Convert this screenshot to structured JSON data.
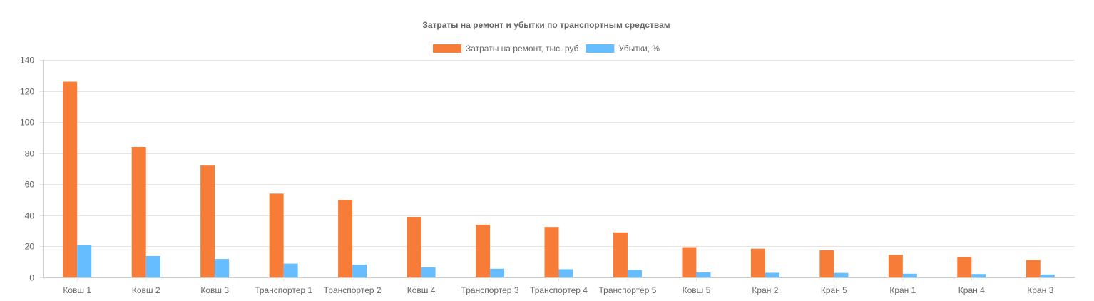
{
  "chart_data": {
    "type": "bar",
    "title": "Затраты на ремонт и убытки по транспортным средствам",
    "categories": [
      "Ковш 1",
      "Ковш 2",
      "Ковш 3",
      "Транспортер 1",
      "Транспортер 2",
      "Ковш 4",
      "Транспортер 3",
      "Транспортер 4",
      "Транспортер 5",
      "Ковш 5",
      "Кран 2",
      "Кран 5",
      "Кран 1",
      "Кран 4",
      "Кран 3"
    ],
    "series": [
      {
        "name": "Затраты на ремонт, тыс. руб",
        "color": "#f77c37",
        "values": [
          126,
          84,
          72,
          54,
          50,
          39,
          34,
          32.5,
          29,
          19.5,
          18.5,
          17.5,
          14.5,
          13.2,
          11.2
        ]
      },
      {
        "name": "Убытки, %",
        "color": "#66bdff",
        "values": [
          20.7,
          13.8,
          11.9,
          8.9,
          8.2,
          6.5,
          5.6,
          5.3,
          4.8,
          3.2,
          3.0,
          2.9,
          2.4,
          2.2,
          1.9
        ]
      }
    ],
    "ylim": [
      0,
      140
    ],
    "yticks": [
      0,
      20,
      40,
      60,
      80,
      100,
      120,
      140
    ],
    "xlabel": "",
    "ylabel": "",
    "grid": true,
    "legend_position": "top-center"
  }
}
